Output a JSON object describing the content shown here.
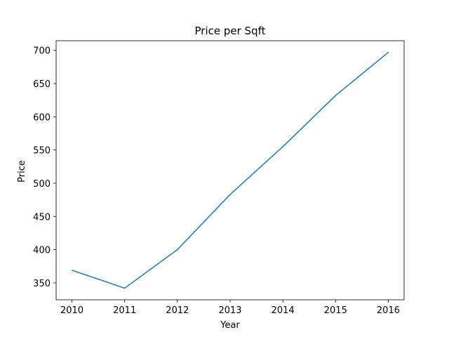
{
  "chart_data": {
    "type": "line",
    "title": "Price per Sqft",
    "xlabel": "Year",
    "ylabel": "Price",
    "x": [
      2010,
      2011,
      2012,
      2013,
      2014,
      2015,
      2016
    ],
    "series": [
      {
        "values": [
          369,
          342,
          400,
          483,
          555,
          632,
          697
        ],
        "color": "#1f77b4"
      }
    ],
    "xlim": [
      2009.7,
      2016.3
    ],
    "ylim": [
      324.5,
      714.5
    ],
    "xticks": [
      2010,
      2011,
      2012,
      2013,
      2014,
      2015,
      2016
    ],
    "yticks": [
      350,
      400,
      450,
      500,
      550,
      600,
      650,
      700
    ],
    "grid": false,
    "legend": "none"
  }
}
